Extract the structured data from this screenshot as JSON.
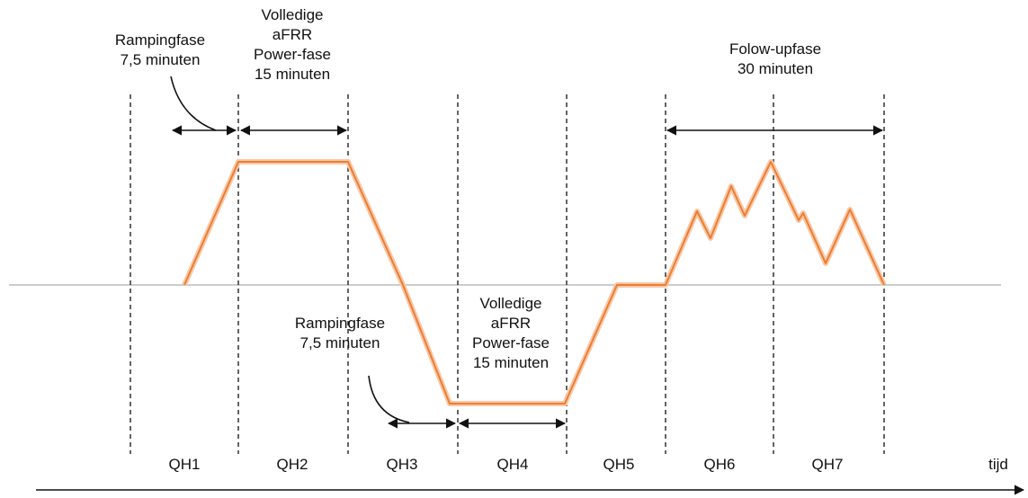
{
  "labels": {
    "ramp1": [
      "Rampingfase",
      "7,5 minuten"
    ],
    "power1": [
      "Volledige",
      "aFRR",
      "Power-fase",
      "15 minuten"
    ],
    "followup": [
      "Folow-upfase",
      "30 minuten"
    ],
    "ramp2": [
      "Rampingfase",
      "7,5 minuten"
    ],
    "power2": [
      "Volledige",
      "aFRR",
      "Power-fase",
      "15 minuten"
    ]
  },
  "quarters": [
    "QH1",
    "QH2",
    "QH3",
    "QH4",
    "QH5",
    "QH6",
    "QH7"
  ],
  "axis_label": "tijd"
}
